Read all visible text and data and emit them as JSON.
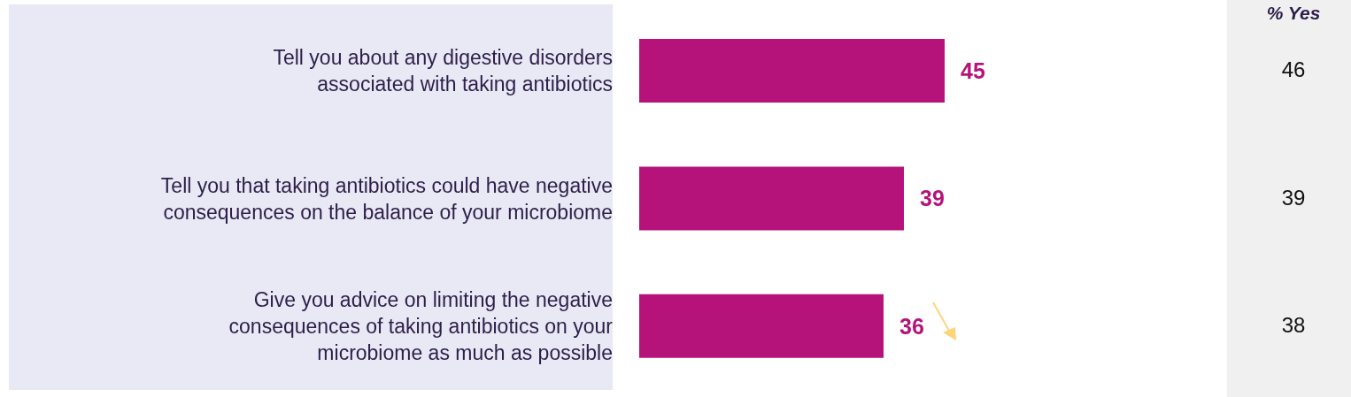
{
  "chart_data": {
    "type": "bar",
    "orientation": "horizontal",
    "categories": [
      "Tell you about any digestive disorders associated with taking antibiotics",
      "Tell you that taking antibiotics could have negative consequences on the balance of your microbiome",
      "Give you advice on limiting the negative consequences of taking antibiotics on your microbiome as much as possible"
    ],
    "values": [
      45,
      39,
      36
    ],
    "color": "#b5137a",
    "data_labels": true,
    "tick_labels": "y",
    "annotations": [
      "% Yes",
      "46",
      "39",
      "38"
    ]
  }
}
